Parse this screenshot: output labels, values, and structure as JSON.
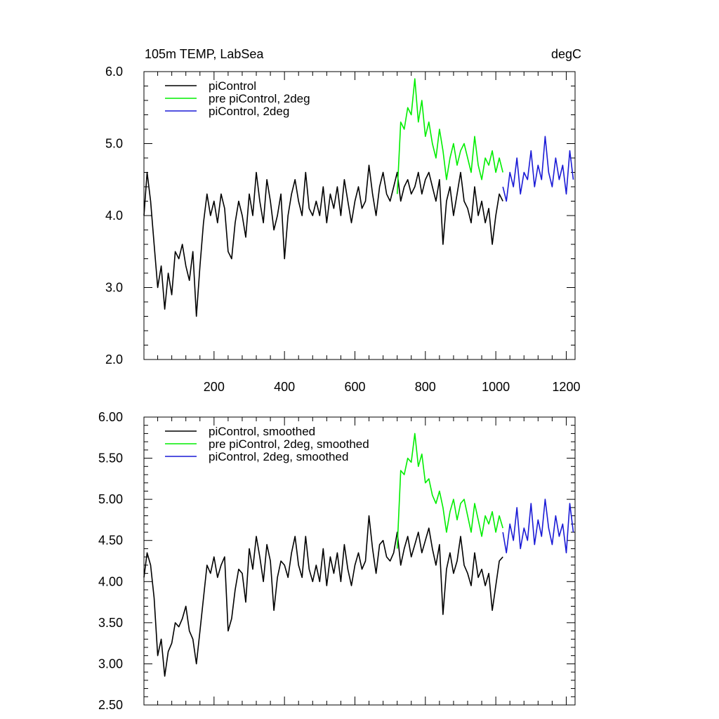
{
  "title_left": "105m TEMP, LabSea",
  "units": "degC",
  "colors": {
    "picontrol": "#000000",
    "pre_picontrol_2deg": "#00ee00",
    "picontrol_2deg": "#1a1ad6"
  },
  "chart_data": [
    {
      "type": "line",
      "panel": "top",
      "title": "105m TEMP, LabSea",
      "units_label": "degC",
      "xlim": [
        1,
        1225
      ],
      "ylim": [
        2.0,
        6.0
      ],
      "x_ticks": [
        200,
        400,
        600,
        800,
        1000,
        1200
      ],
      "x_tick_labels": [
        "200",
        "400",
        "600",
        "800",
        "1000",
        "1200"
      ],
      "y_ticks": [
        2.0,
        3.0,
        4.0,
        5.0,
        6.0
      ],
      "y_tick_labels": [
        "2.0",
        "3.0",
        "4.0",
        "5.0",
        "6.0"
      ],
      "legend_position": "top-left",
      "series": [
        {
          "name": "piControl",
          "color": "#000000",
          "x": [
            1,
            10,
            20,
            30,
            40,
            50,
            60,
            70,
            80,
            90,
            100,
            110,
            120,
            130,
            140,
            150,
            160,
            170,
            180,
            190,
            200,
            210,
            220,
            230,
            240,
            250,
            260,
            270,
            280,
            290,
            300,
            310,
            320,
            330,
            340,
            350,
            360,
            370,
            380,
            390,
            400,
            410,
            420,
            430,
            440,
            450,
            460,
            470,
            480,
            490,
            500,
            510,
            520,
            530,
            540,
            550,
            560,
            570,
            580,
            590,
            600,
            610,
            620,
            630,
            640,
            650,
            660,
            670,
            680,
            690,
            700,
            710,
            720,
            730,
            740,
            750,
            760,
            770,
            780,
            790,
            800,
            810,
            820,
            830,
            840,
            850,
            860,
            870,
            880,
            890,
            900,
            910,
            920,
            930,
            940,
            950,
            960,
            970,
            980,
            990,
            1000,
            1010,
            1020
          ],
          "y": [
            4.0,
            4.6,
            4.2,
            3.6,
            3.0,
            3.3,
            2.7,
            3.2,
            2.9,
            3.5,
            3.4,
            3.6,
            3.3,
            3.1,
            3.5,
            2.6,
            3.3,
            3.9,
            4.3,
            4.0,
            4.2,
            3.9,
            4.3,
            4.1,
            3.5,
            3.4,
            3.9,
            4.2,
            4.0,
            3.7,
            4.3,
            4.0,
            4.6,
            4.2,
            3.9,
            4.5,
            4.2,
            3.8,
            4.0,
            4.3,
            3.4,
            4.0,
            4.3,
            4.5,
            4.2,
            4.0,
            4.6,
            4.1,
            4.0,
            4.2,
            4.0,
            4.4,
            3.9,
            4.3,
            4.1,
            4.4,
            4.0,
            4.5,
            4.2,
            3.9,
            4.2,
            4.4,
            4.1,
            4.2,
            4.7,
            4.3,
            4.0,
            4.4,
            4.6,
            4.3,
            4.2,
            4.4,
            4.6,
            4.2,
            4.4,
            4.5,
            4.3,
            4.4,
            4.6,
            4.3,
            4.5,
            4.6,
            4.4,
            4.2,
            4.5,
            3.6,
            4.2,
            4.4,
            4.0,
            4.3,
            4.6,
            4.2,
            4.1,
            3.9,
            4.4,
            4.0,
            4.2,
            3.9,
            4.1,
            3.6,
            4.0,
            4.3,
            4.2
          ]
        },
        {
          "name": "pre piControl, 2deg",
          "color": "#00ee00",
          "x": [
            720,
            730,
            740,
            750,
            760,
            770,
            780,
            790,
            800,
            810,
            820,
            830,
            840,
            850,
            860,
            870,
            880,
            890,
            900,
            910,
            920,
            930,
            940,
            950,
            960,
            970,
            980,
            990,
            1000,
            1010,
            1020
          ],
          "y": [
            4.3,
            5.3,
            5.2,
            5.5,
            5.4,
            5.9,
            5.3,
            5.6,
            5.1,
            5.3,
            5.0,
            4.8,
            5.2,
            4.9,
            4.5,
            4.8,
            5.0,
            4.7,
            4.9,
            5.0,
            4.8,
            4.6,
            5.1,
            4.7,
            4.5,
            4.8,
            4.7,
            4.9,
            4.6,
            4.8,
            4.6
          ]
        },
        {
          "name": "piControl, 2deg",
          "color": "#1a1ad6",
          "x": [
            1020,
            1030,
            1040,
            1050,
            1060,
            1070,
            1080,
            1090,
            1100,
            1110,
            1120,
            1130,
            1140,
            1150,
            1160,
            1170,
            1180,
            1190,
            1200,
            1210,
            1220
          ],
          "y": [
            4.4,
            4.2,
            4.6,
            4.4,
            4.8,
            4.3,
            4.6,
            4.5,
            4.9,
            4.4,
            4.7,
            4.5,
            5.1,
            4.6,
            4.4,
            4.8,
            4.5,
            4.7,
            4.3,
            4.9,
            4.5
          ]
        }
      ]
    },
    {
      "type": "line",
      "panel": "bottom",
      "xlim": [
        1,
        1225
      ],
      "ylim": [
        2.5,
        6.0
      ],
      "y_ticks": [
        2.5,
        3.0,
        3.5,
        4.0,
        4.5,
        5.0,
        5.5,
        6.0
      ],
      "y_tick_labels": [
        "2.50",
        "3.00",
        "3.50",
        "4.00",
        "4.50",
        "5.00",
        "5.50",
        "6.00"
      ],
      "legend_position": "top-left",
      "series": [
        {
          "name": "piControl, smoothed",
          "color": "#000000",
          "x": [
            1,
            10,
            20,
            30,
            40,
            50,
            60,
            70,
            80,
            90,
            100,
            110,
            120,
            130,
            140,
            150,
            160,
            170,
            180,
            190,
            200,
            210,
            220,
            230,
            240,
            250,
            260,
            270,
            280,
            290,
            300,
            310,
            320,
            330,
            340,
            350,
            360,
            370,
            380,
            390,
            400,
            410,
            420,
            430,
            440,
            450,
            460,
            470,
            480,
            490,
            500,
            510,
            520,
            530,
            540,
            550,
            560,
            570,
            580,
            590,
            600,
            610,
            620,
            630,
            640,
            650,
            660,
            670,
            680,
            690,
            700,
            710,
            720,
            730,
            740,
            750,
            760,
            770,
            780,
            790,
            800,
            810,
            820,
            830,
            840,
            850,
            860,
            870,
            880,
            890,
            900,
            910,
            920,
            930,
            940,
            950,
            960,
            970,
            980,
            990,
            1000,
            1010,
            1020
          ],
          "y": [
            4.05,
            4.35,
            4.2,
            3.8,
            3.1,
            3.3,
            2.85,
            3.15,
            3.25,
            3.5,
            3.45,
            3.55,
            3.7,
            3.4,
            3.3,
            3.0,
            3.4,
            3.8,
            4.2,
            4.1,
            4.3,
            4.05,
            4.2,
            4.3,
            3.4,
            3.55,
            3.9,
            4.15,
            4.1,
            3.75,
            4.4,
            4.15,
            4.55,
            4.3,
            4.0,
            4.45,
            4.25,
            3.65,
            4.05,
            4.25,
            4.2,
            4.05,
            4.35,
            4.55,
            4.2,
            4.05,
            4.55,
            4.15,
            4.0,
            4.2,
            4.0,
            4.4,
            3.95,
            4.3,
            4.1,
            4.35,
            4.0,
            4.45,
            4.15,
            3.95,
            4.2,
            4.35,
            4.15,
            4.25,
            4.8,
            4.4,
            4.1,
            4.45,
            4.5,
            4.3,
            4.25,
            4.35,
            4.6,
            4.2,
            4.4,
            4.55,
            4.3,
            4.45,
            4.6,
            4.35,
            4.5,
            4.65,
            4.4,
            4.2,
            4.45,
            3.6,
            4.15,
            4.35,
            4.1,
            4.25,
            4.55,
            4.2,
            4.1,
            3.95,
            4.35,
            4.05,
            4.15,
            3.95,
            4.1,
            3.65,
            3.95,
            4.25,
            4.3
          ]
        },
        {
          "name": "pre piControl, 2deg, smoothed",
          "color": "#00ee00",
          "x": [
            720,
            730,
            740,
            750,
            760,
            770,
            780,
            790,
            800,
            810,
            820,
            830,
            840,
            850,
            860,
            870,
            880,
            890,
            900,
            910,
            920,
            930,
            940,
            950,
            960,
            970,
            980,
            990,
            1000,
            1010,
            1020
          ],
          "y": [
            4.4,
            5.35,
            5.3,
            5.5,
            5.45,
            5.8,
            5.4,
            5.55,
            5.2,
            5.25,
            5.05,
            4.95,
            5.1,
            4.9,
            4.6,
            4.85,
            5.0,
            4.75,
            4.95,
            5.0,
            4.8,
            4.6,
            4.95,
            4.75,
            4.55,
            4.8,
            4.7,
            4.85,
            4.6,
            4.8,
            4.65
          ]
        },
        {
          "name": "piControl, 2deg, smoothed",
          "color": "#1a1ad6",
          "x": [
            1020,
            1030,
            1040,
            1050,
            1060,
            1070,
            1080,
            1090,
            1100,
            1110,
            1120,
            1130,
            1140,
            1150,
            1160,
            1170,
            1180,
            1190,
            1200,
            1210,
            1220
          ],
          "y": [
            4.6,
            4.35,
            4.7,
            4.5,
            4.9,
            4.4,
            4.65,
            4.5,
            4.95,
            4.45,
            4.75,
            4.55,
            5.0,
            4.65,
            4.45,
            4.8,
            4.55,
            4.7,
            4.35,
            4.95,
            4.6
          ]
        }
      ]
    }
  ]
}
